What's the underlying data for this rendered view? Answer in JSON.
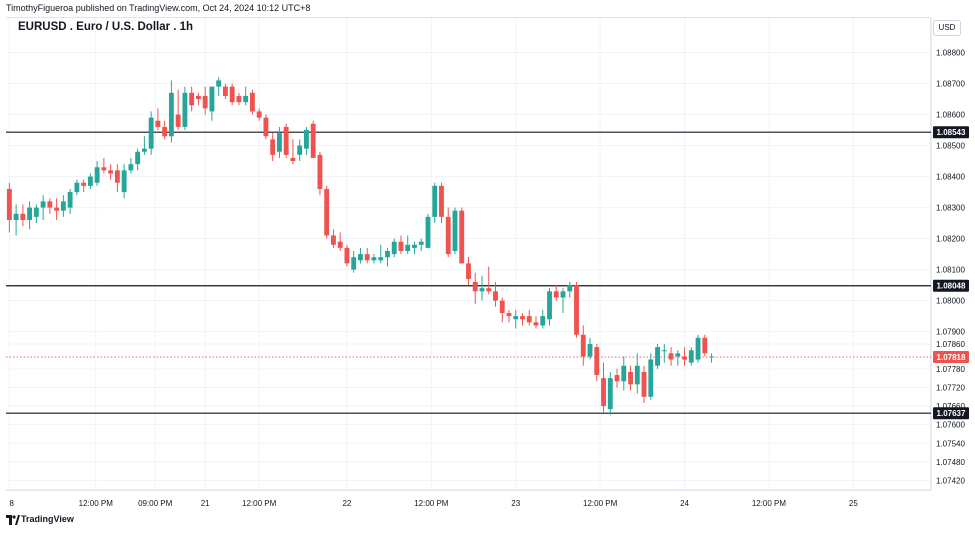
{
  "header": {
    "published": "TimothyFigueroa published on TradingView.com, Oct 24, 2024 10:12 UTC+8",
    "symbol": "EURUSD . Euro / U.S. Dollar . 1h",
    "currency": "USD"
  },
  "footer": {
    "brand": "TradingView"
  },
  "colors": {
    "up": "#26a69a",
    "down": "#ef5350",
    "line": "#131722",
    "current": "#ef5350",
    "grid": "#f0f3fa"
  },
  "chart_data": {
    "type": "candlestick",
    "ylim": [
      1.0737,
      1.0885
    ],
    "y_ticks": [
      "1.08800",
      "1.08700",
      "1.08600",
      "1.08500",
      "1.08400",
      "1.08300",
      "1.08200",
      "1.08100",
      "1.08000",
      "1.07900",
      "1.07860",
      "1.07780",
      "1.07720",
      "1.07660",
      "1.07600",
      "1.07540",
      "1.07480",
      "1.07420"
    ],
    "x_ticks": [
      {
        "label": "8",
        "at": 0.0
      },
      {
        "label": "12:00 PM",
        "at": 12.8
      },
      {
        "label": "09:00 PM",
        "at": 21.6
      },
      {
        "label": "21",
        "at": 29.0
      },
      {
        "label": "12:00 PM",
        "at": 37.0
      },
      {
        "label": "22",
        "at": 50.0
      },
      {
        "label": "12:00 PM",
        "at": 62.5
      },
      {
        "label": "23",
        "at": 75.0
      },
      {
        "label": "12:00 PM",
        "at": 87.5
      },
      {
        "label": "24",
        "at": 100.0
      },
      {
        "label": "12:00 PM",
        "at": 112.5
      },
      {
        "label": "25",
        "at": 125.0
      }
    ],
    "xlim": [
      -0.2,
      136.5
    ],
    "horizontal_levels": [
      {
        "value": 1.08543,
        "label": "1.08543"
      },
      {
        "value": 1.08048,
        "label": "1.08048"
      },
      {
        "value": 1.07637,
        "label": "1.07637"
      }
    ],
    "current_price": {
      "value": 1.07818,
      "label": "1.07818"
    },
    "candles": [
      [
        1.0836,
        1.0838,
        1.0822,
        1.0826
      ],
      [
        1.0826,
        1.0831,
        1.0821,
        1.0828
      ],
      [
        1.0828,
        1.0831,
        1.0824,
        1.0826
      ],
      [
        1.0826,
        1.0832,
        1.0823,
        1.083
      ],
      [
        1.0827,
        1.0831,
        1.0825,
        1.083
      ],
      [
        1.083,
        1.0834,
        1.0826,
        1.0832
      ],
      [
        1.0832,
        1.0833,
        1.0828,
        1.083
      ],
      [
        1.083,
        1.0833,
        1.0826,
        1.0829
      ],
      [
        1.0829,
        1.0834,
        1.0827,
        1.0832
      ],
      [
        1.083,
        1.0836,
        1.0828,
        1.0835
      ],
      [
        1.0835,
        1.0839,
        1.0834,
        1.0838
      ],
      [
        1.0838,
        1.0839,
        1.0835,
        1.0837
      ],
      [
        1.0837,
        1.0841,
        1.0836,
        1.084
      ],
      [
        1.0838,
        1.0845,
        1.0837,
        1.0843
      ],
      [
        1.0843,
        1.0846,
        1.0841,
        1.0842
      ],
      [
        1.0842,
        1.0844,
        1.0839,
        1.0841
      ],
      [
        1.0842,
        1.0844,
        1.0835,
        1.0838
      ],
      [
        1.0835,
        1.0844,
        1.0833,
        1.0842
      ],
      [
        1.0842,
        1.0846,
        1.0841,
        1.0844
      ],
      [
        1.0844,
        1.0849,
        1.0842,
        1.0848
      ],
      [
        1.0848,
        1.0853,
        1.0847,
        1.0849
      ],
      [
        1.0849,
        1.0861,
        1.0847,
        1.0859
      ],
      [
        1.0858,
        1.0862,
        1.0855,
        1.0856
      ],
      [
        1.0856,
        1.0858,
        1.0852,
        1.0853
      ],
      [
        1.0853,
        1.0871,
        1.0851,
        1.0867
      ],
      [
        1.086,
        1.0868,
        1.0855,
        1.0856
      ],
      [
        1.0856,
        1.0869,
        1.0855,
        1.0867
      ],
      [
        1.0867,
        1.0869,
        1.0861,
        1.0863
      ],
      [
        1.0866,
        1.0867,
        1.0863,
        1.0865
      ],
      [
        1.0866,
        1.0869,
        1.086,
        1.0862
      ],
      [
        1.0861,
        1.0869,
        1.0858,
        1.0869
      ],
      [
        1.0869,
        1.0872,
        1.0866,
        1.0871
      ],
      [
        1.0869,
        1.087,
        1.0865,
        1.0866
      ],
      [
        1.0869,
        1.087,
        1.0863,
        1.0864
      ],
      [
        1.0866,
        1.0867,
        1.0863,
        1.0864
      ],
      [
        1.0864,
        1.0869,
        1.0863,
        1.0866
      ],
      [
        1.0867,
        1.0868,
        1.086,
        1.0861
      ],
      [
        1.0861,
        1.0862,
        1.0858,
        1.0859
      ],
      [
        1.0859,
        1.086,
        1.0852,
        1.0853
      ],
      [
        1.0852,
        1.0854,
        1.0845,
        1.0847
      ],
      [
        1.0848,
        1.0856,
        1.0846,
        1.0854
      ],
      [
        1.0856,
        1.0857,
        1.0846,
        1.0847
      ],
      [
        1.0846,
        1.0852,
        1.0844,
        1.0845
      ],
      [
        1.0847,
        1.0852,
        1.0845,
        1.085
      ],
      [
        1.0849,
        1.0856,
        1.0847,
        1.0855
      ],
      [
        1.0857,
        1.0858,
        1.0847,
        1.0846
      ],
      [
        1.0847,
        1.0848,
        1.0834,
        1.0836
      ],
      [
        1.0836,
        1.0837,
        1.082,
        1.0821
      ],
      [
        1.0821,
        1.0823,
        1.0817,
        1.0818
      ],
      [
        1.0819,
        1.0822,
        1.0816,
        1.0817
      ],
      [
        1.0817,
        1.0818,
        1.0811,
        1.0812
      ],
      [
        1.081,
        1.0816,
        1.0809,
        1.0814
      ],
      [
        1.0813,
        1.0817,
        1.0812,
        1.0815
      ],
      [
        1.0815,
        1.0817,
        1.0812,
        1.0813
      ],
      [
        1.0813,
        1.0815,
        1.0812,
        1.0814
      ],
      [
        1.0813,
        1.0818,
        1.0812,
        1.0814
      ],
      [
        1.0814,
        1.0817,
        1.0811,
        1.0816
      ],
      [
        1.0815,
        1.082,
        1.0814,
        1.0819
      ],
      [
        1.0819,
        1.0821,
        1.0815,
        1.0816
      ],
      [
        1.0816,
        1.0821,
        1.0815,
        1.0818
      ],
      [
        1.0817,
        1.0819,
        1.0815,
        1.0818
      ],
      [
        1.0818,
        1.082,
        1.0816,
        1.0819
      ],
      [
        1.0817,
        1.0828,
        1.0817,
        1.0827
      ],
      [
        1.0827,
        1.0838,
        1.0825,
        1.0837
      ],
      [
        1.0837,
        1.0838,
        1.0825,
        1.0827
      ],
      [
        1.0827,
        1.083,
        1.0814,
        1.0815
      ],
      [
        1.0816,
        1.083,
        1.0815,
        1.0829
      ],
      [
        1.0829,
        1.083,
        1.0812,
        1.0812
      ],
      [
        1.0812,
        1.0814,
        1.0805,
        1.0807
      ],
      [
        1.0806,
        1.0809,
        1.0799,
        1.0803
      ],
      [
        1.0803,
        1.0808,
        1.08,
        1.0804
      ],
      [
        1.0804,
        1.0811,
        1.0802,
        1.0803
      ],
      [
        1.0803,
        1.0806,
        1.0798,
        1.08
      ],
      [
        1.08,
        1.0801,
        1.0793,
        1.0796
      ],
      [
        1.0796,
        1.0797,
        1.0793,
        1.0795
      ],
      [
        1.0794,
        1.0797,
        1.0791,
        1.0795
      ],
      [
        1.0795,
        1.0796,
        1.0792,
        1.0794
      ],
      [
        1.0795,
        1.0797,
        1.0792,
        1.0793
      ],
      [
        1.0793,
        1.0795,
        1.0791,
        1.0792
      ],
      [
        1.0792,
        1.0797,
        1.0791,
        1.0795
      ],
      [
        1.0794,
        1.0804,
        1.0792,
        1.0803
      ],
      [
        1.0803,
        1.0805,
        1.08,
        1.0801
      ],
      [
        1.0801,
        1.0804,
        1.0796,
        1.0803
      ],
      [
        1.0803,
        1.0806,
        1.0801,
        1.0805
      ],
      [
        1.0805,
        1.0806,
        1.0788,
        1.0789
      ],
      [
        1.0789,
        1.0792,
        1.0779,
        1.0782
      ],
      [
        1.0782,
        1.0788,
        1.0781,
        1.0786
      ],
      [
        1.0785,
        1.0786,
        1.0774,
        1.0776
      ],
      [
        1.0775,
        1.078,
        1.0764,
        1.0766
      ],
      [
        1.0765,
        1.0777,
        1.0763,
        1.0775
      ],
      [
        1.0776,
        1.0778,
        1.0772,
        1.0774
      ],
      [
        1.0774,
        1.0782,
        1.0771,
        1.0779
      ],
      [
        1.0777,
        1.0779,
        1.0771,
        1.0773
      ],
      [
        1.0773,
        1.0783,
        1.077,
        1.0779
      ],
      [
        1.0777,
        1.0779,
        1.0767,
        1.0769
      ],
      [
        1.0769,
        1.0783,
        1.0768,
        1.0781
      ],
      [
        1.0779,
        1.0786,
        1.0778,
        1.0785
      ],
      [
        1.0784,
        1.0786,
        1.078,
        1.0784
      ],
      [
        1.0783,
        1.0785,
        1.0779,
        1.0781
      ],
      [
        1.0782,
        1.0784,
        1.0779,
        1.0783
      ],
      [
        1.0782,
        1.0785,
        1.0779,
        1.0781
      ],
      [
        1.078,
        1.0785,
        1.0779,
        1.0784
      ],
      [
        1.0781,
        1.0789,
        1.078,
        1.0788
      ],
      [
        1.0788,
        1.0789,
        1.0782,
        1.0783
      ],
      [
        1.0782,
        1.0783,
        1.078,
        1.0782
      ]
    ]
  }
}
